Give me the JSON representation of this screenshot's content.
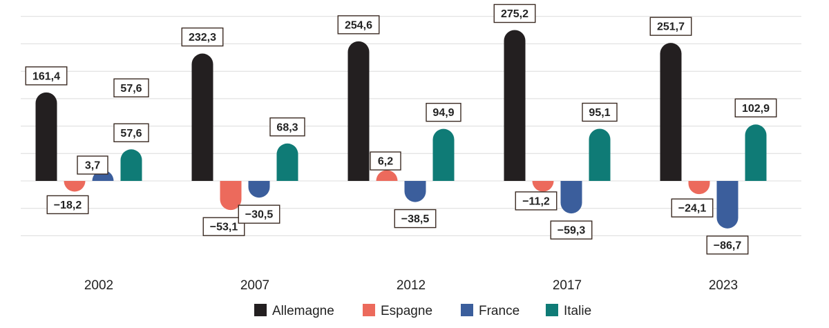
{
  "chart_data": {
    "type": "bar",
    "categories": [
      "2002",
      "2007",
      "2012",
      "2017",
      "2023"
    ],
    "series": [
      {
        "name": "Allemagne",
        "color": "#231f20",
        "values": [
          161.4,
          232.3,
          254.6,
          275.2,
          251.7
        ],
        "labels": [
          "161,4",
          "232,3",
          "254,6",
          "275,2",
          "251,7"
        ]
      },
      {
        "name": "Espagne",
        "color": "#ec6a5c",
        "values": [
          -18.2,
          -53.1,
          6.2,
          -11.2,
          -24.1
        ],
        "labels": [
          "-18,2",
          "-53,1",
          "6,2",
          "-11,2",
          "-24,1"
        ]
      },
      {
        "name": "France",
        "color": "#3b5e9c",
        "values": [
          3.7,
          -30.5,
          -38.5,
          -59.3,
          -86.7
        ],
        "labels": [
          "3,7",
          "-30,5",
          "-38,5",
          "-59,3",
          "-86,7"
        ]
      },
      {
        "name": "Italie",
        "color": "#0f7b76",
        "values": [
          57.6,
          68.3,
          94.9,
          95.1,
          102.9
        ],
        "labels": [
          "57,6",
          "68,3",
          "94,9",
          "95,1",
          "102,9"
        ]
      }
    ],
    "extra_labels": [
      {
        "category": "2002",
        "series": "Italie",
        "text": "57,6"
      }
    ],
    "ylim": [
      -100,
      300
    ],
    "grid": true,
    "legend_position": "bottom",
    "title": "",
    "xlabel": "",
    "ylabel": ""
  }
}
